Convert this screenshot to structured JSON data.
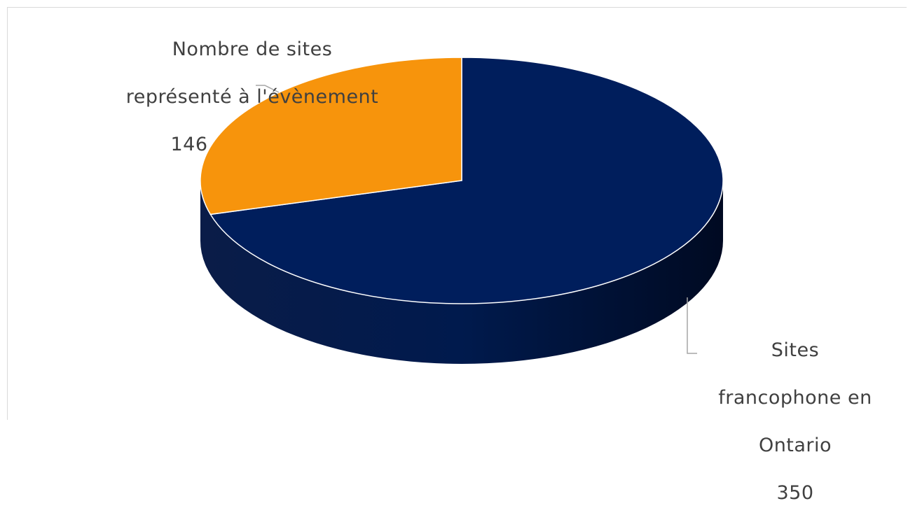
{
  "chart_data": {
    "type": "pie",
    "title": "",
    "slices": [
      {
        "label": "Sites francophone en Ontario",
        "label_lines": [
          "Sites",
          "francophone en",
          "Ontario"
        ],
        "value": 350,
        "value_text": "350",
        "color": "#001e5c"
      },
      {
        "label": "Nombre de sites représenté à l'évènement",
        "label_lines": [
          "Nombre de sites",
          "représenté à l'évènement"
        ],
        "value": 146,
        "value_text": "146",
        "color": "#f7940c"
      }
    ],
    "style": "3d",
    "start_angle": "12 o'clock",
    "direction": "clockwise",
    "legend": "none",
    "data_labels": "outside-with-leader-lines"
  }
}
